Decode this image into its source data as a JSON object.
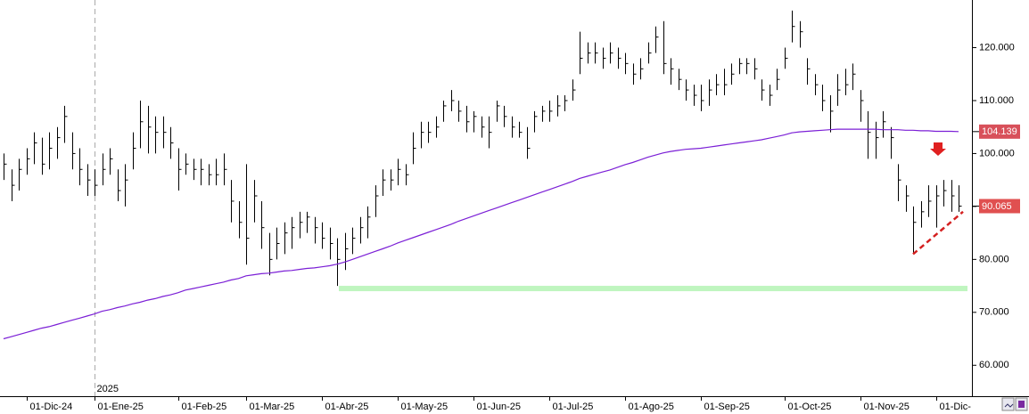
{
  "chart_data": {
    "type": "ohlc",
    "categories": [
      null,
      null,
      null,
      "01-Dic-24",
      null,
      null,
      null,
      null,
      null,
      null,
      null,
      null,
      "01-Ene-25",
      null,
      null,
      null,
      null,
      null,
      null,
      null,
      null,
      null,
      null,
      "01-Feb-25",
      null,
      null,
      null,
      null,
      null,
      null,
      null,
      null,
      "01-Mar-25",
      null,
      null,
      null,
      null,
      null,
      null,
      null,
      null,
      null,
      "01-Abr-25",
      null,
      null,
      null,
      null,
      null,
      null,
      null,
      null,
      null,
      "01-May-25",
      null,
      null,
      null,
      null,
      null,
      null,
      null,
      null,
      null,
      "01-Jun-25",
      null,
      null,
      null,
      null,
      null,
      null,
      null,
      null,
      null,
      "01-Jul-25",
      null,
      null,
      null,
      null,
      null,
      null,
      null,
      null,
      null,
      "01-Ago-25",
      null,
      null,
      null,
      null,
      null,
      null,
      null,
      null,
      null,
      "01-Sep-25",
      null,
      null,
      null,
      null,
      null,
      null,
      null,
      null,
      null,
      null,
      "01-Oct-25",
      null,
      null,
      null,
      null,
      null,
      null,
      null,
      null,
      null,
      "01-Nov-25",
      null,
      null,
      null,
      null,
      null,
      null,
      null,
      null,
      null,
      "01-Dic-",
      null,
      null,
      null
    ],
    "high": [
      100,
      97,
      99,
      101,
      104,
      103,
      104,
      105,
      109,
      104,
      101,
      98,
      97,
      100,
      101,
      97,
      98,
      104,
      110,
      109,
      107,
      107,
      105,
      101,
      100,
      99,
      99,
      98,
      99,
      100,
      95,
      91,
      98,
      95,
      91,
      85,
      86,
      87,
      88,
      89,
      89,
      88,
      87,
      86,
      84,
      85,
      86,
      88,
      90,
      94,
      97,
      97,
      99,
      98,
      104,
      106,
      106,
      107,
      110,
      112,
      110,
      109,
      108,
      107,
      107,
      110,
      109,
      107,
      106,
      105,
      108,
      109,
      110,
      111,
      111,
      114,
      123,
      121,
      121,
      120,
      121,
      120,
      119,
      117,
      118,
      121,
      124,
      125,
      118,
      116,
      114,
      113,
      113,
      114,
      115,
      116,
      117,
      118,
      118,
      118,
      114,
      113,
      116,
      120,
      127,
      125,
      118,
      115,
      113,
      111,
      115,
      116,
      117,
      112,
      108,
      106,
      108,
      105,
      98,
      94,
      90,
      91,
      94,
      94,
      95,
      95,
      94
    ],
    "low": [
      95,
      91,
      93,
      96,
      98,
      96,
      97,
      99,
      102,
      97,
      94,
      92,
      92,
      94,
      96,
      91,
      90,
      97,
      101,
      100,
      100,
      101,
      99,
      93,
      96,
      95,
      94,
      94,
      94,
      94,
      87,
      84,
      79,
      87,
      82,
      77,
      80,
      81,
      82,
      84,
      85,
      83,
      82,
      80,
      75,
      78,
      81,
      83,
      84,
      88,
      92,
      93,
      94,
      94,
      98,
      101,
      102,
      103,
      106,
      108,
      106,
      104,
      104,
      103,
      101,
      106,
      105,
      103,
      103,
      99,
      104,
      106,
      106,
      107,
      108,
      110,
      115,
      117,
      117,
      116,
      117,
      116,
      115,
      113,
      114,
      117,
      119,
      115,
      113,
      112,
      110,
      109,
      108,
      109,
      111,
      111,
      113,
      115,
      115,
      114,
      110,
      109,
      112,
      116,
      121,
      120,
      113,
      111,
      108,
      104,
      109,
      111,
      112,
      106,
      99,
      99,
      103,
      99,
      91,
      89,
      81,
      86,
      88,
      86,
      90,
      89,
      89
    ],
    "close": [
      98,
      94,
      97,
      99,
      102,
      98,
      101,
      103,
      107,
      100,
      97,
      95,
      94,
      97,
      99,
      93,
      95,
      101,
      106,
      105,
      104,
      104,
      102,
      97,
      98,
      97,
      97,
      96,
      96,
      97,
      91,
      87,
      84,
      92,
      86,
      80,
      83,
      85,
      86,
      87,
      88,
      86,
      84,
      83,
      80,
      82,
      84,
      86,
      88,
      92,
      95,
      95,
      97,
      96,
      101,
      104,
      104,
      105,
      109,
      110,
      108,
      106,
      107,
      105,
      104,
      109,
      107,
      105,
      104,
      101,
      107,
      108,
      108,
      109,
      110,
      112,
      118,
      119,
      119,
      118,
      119,
      118,
      117,
      115,
      116,
      119,
      122,
      117,
      116,
      114,
      112,
      111,
      110,
      112,
      113,
      113,
      115,
      117,
      117,
      116,
      112,
      111,
      114,
      118,
      124,
      123,
      116,
      113,
      110,
      108,
      112,
      113,
      115,
      110,
      104,
      103,
      106,
      103,
      95,
      92,
      87,
      89,
      91,
      92,
      93,
      92,
      90.065
    ],
    "ma": [
      65.0,
      65.4,
      65.8,
      66.2,
      66.6,
      67.0,
      67.3,
      67.7,
      68.1,
      68.5,
      68.9,
      69.3,
      69.7,
      70.2,
      70.5,
      70.9,
      71.2,
      71.6,
      71.9,
      72.3,
      72.6,
      73.0,
      73.3,
      73.7,
      74.2,
      74.5,
      74.8,
      75.1,
      75.4,
      75.7,
      76.1,
      76.4,
      76.9,
      77.1,
      77.3,
      77.4,
      77.6,
      77.8,
      77.9,
      78.1,
      78.3,
      78.4,
      78.6,
      78.8,
      79.1,
      79.5,
      80.0,
      80.5,
      81.0,
      81.5,
      82.0,
      82.5,
      83.1,
      83.6,
      84.1,
      84.6,
      85.1,
      85.6,
      86.1,
      86.6,
      87.2,
      87.7,
      88.2,
      88.7,
      89.2,
      89.7,
      90.2,
      90.7,
      91.2,
      91.7,
      92.2,
      92.7,
      93.2,
      93.7,
      94.2,
      94.7,
      95.3,
      95.7,
      96.1,
      96.5,
      96.9,
      97.4,
      97.9,
      98.3,
      98.8,
      99.3,
      99.7,
      100.1,
      100.4,
      100.6,
      100.8,
      100.9,
      101.0,
      101.2,
      101.4,
      101.6,
      101.8,
      102.0,
      102.2,
      102.4,
      102.6,
      102.9,
      103.2,
      103.5,
      103.9,
      104.1,
      104.2,
      104.3,
      104.4,
      104.5,
      104.6,
      104.6,
      104.6,
      104.6,
      104.6,
      104.6,
      104.5,
      104.5,
      104.5,
      104.4,
      104.4,
      104.3,
      104.3,
      104.2,
      104.2,
      104.2,
      104.139
    ],
    "color": "#000000",
    "ma_color": "#7b1fd6",
    "ylim": [
      55,
      129
    ],
    "yticks": [
      {
        "value": 60,
        "label": "60.000"
      },
      {
        "value": 70,
        "label": "70.000"
      },
      {
        "value": 80,
        "label": "80.000"
      },
      {
        "value": 90,
        "label": "90.000"
      },
      {
        "value": 100,
        "label": "100.000"
      },
      {
        "value": 110,
        "label": "110.000"
      },
      {
        "value": 120,
        "label": "120.000"
      }
    ],
    "year_label": "2025",
    "support": 74.5,
    "support_color": "#bff5bf",
    "trendline": [
      81,
      89
    ],
    "trend_color": "#d42020",
    "grid": false
  }
}
